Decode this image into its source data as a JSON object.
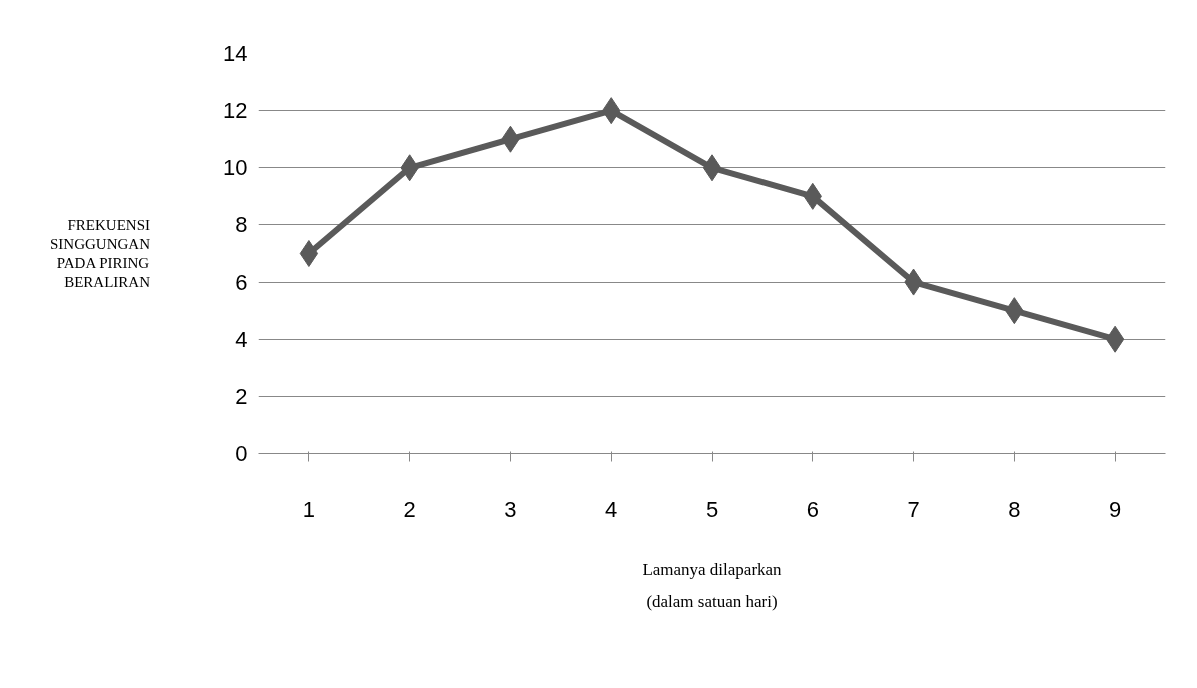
{
  "chart_data": {
    "type": "line",
    "categories": [
      "1",
      "2",
      "3",
      "4",
      "5",
      "6",
      "7",
      "8",
      "9"
    ],
    "series": [
      {
        "color": "#5a5a5a",
        "values": [
          7,
          10,
          11,
          12,
          10,
          9,
          6,
          5,
          4
        ]
      }
    ],
    "xlabel": "Lamanya dilaparkan\n(dalam satuan hari)",
    "ylabel": "FREKUENSI SINGGUNGAN PADA PIRING BERALIRAN",
    "ylim": [
      0,
      14
    ],
    "yticks": [
      0,
      2,
      4,
      6,
      8,
      10,
      12,
      14
    ],
    "grid": "y",
    "marker": "diamond",
    "line_style": "solid"
  }
}
